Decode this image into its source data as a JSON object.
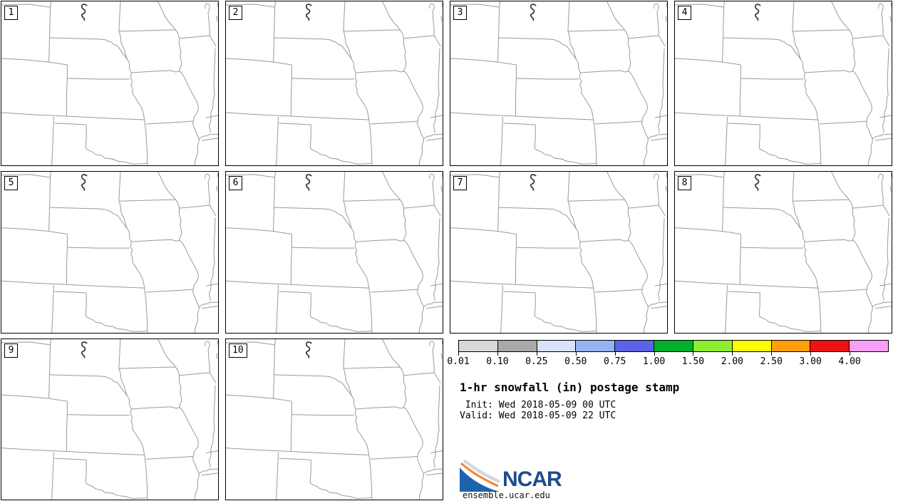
{
  "panels": [
    {
      "label": "1"
    },
    {
      "label": "2"
    },
    {
      "label": "3"
    },
    {
      "label": "4"
    },
    {
      "label": "5"
    },
    {
      "label": "6"
    },
    {
      "label": "7"
    },
    {
      "label": "8"
    },
    {
      "label": "9"
    },
    {
      "label": "10"
    }
  ],
  "colorbar": {
    "labels": [
      "0.01",
      "0.10",
      "0.25",
      "0.50",
      "0.75",
      "1.00",
      "1.50",
      "2.00",
      "2.50",
      "3.00",
      "4.00"
    ],
    "colors": [
      "#d8d8d8",
      "#a9a9a9",
      "#dbe2fb",
      "#94b3f4",
      "#5b63e8",
      "#00b02d",
      "#8cee2e",
      "#fdfd02",
      "#ffa008",
      "#f01111",
      "#f8a0f8"
    ]
  },
  "legend": {
    "title": "1-hr snowfall (in) postage stamp",
    "init_line": " Init: Wed 2018-05-09 00 UTC",
    "valid_line": "Valid: Wed 2018-05-09 22 UTC"
  },
  "branding": {
    "logo_text": "NCAR",
    "site": "ensemble.ucar.edu",
    "logo_blue": "#1c63ad",
    "logo_orange": "#ef8632"
  }
}
